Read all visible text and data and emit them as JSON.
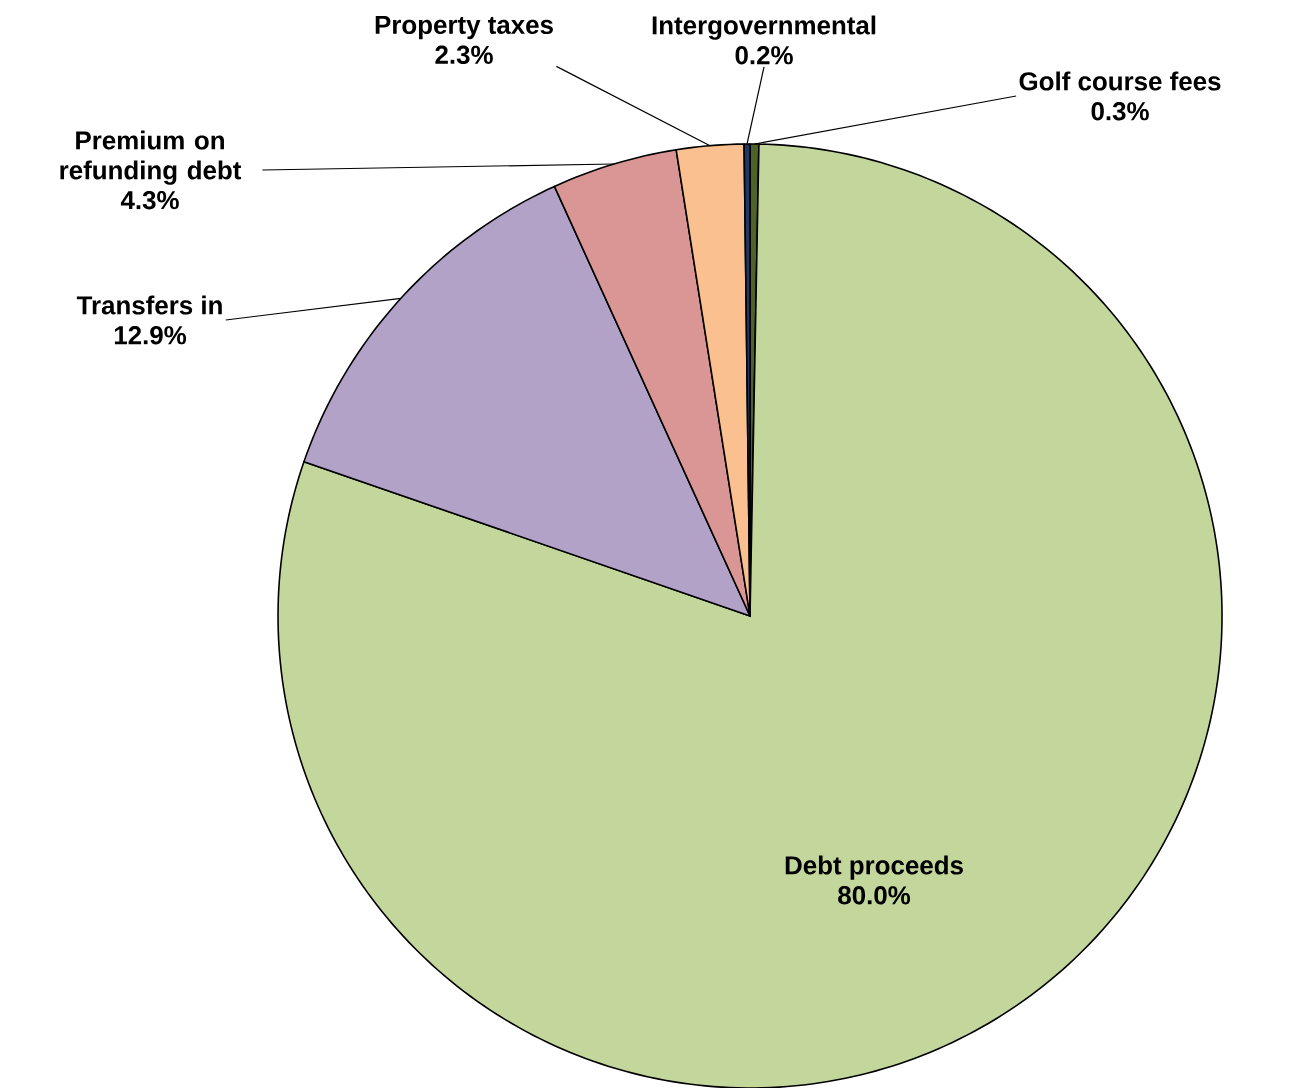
{
  "chart_data": {
    "type": "pie",
    "categories": [
      "Golf course fees",
      "Debt proceeds",
      "Transfers in",
      "Premium on refunding debt",
      "Property taxes",
      "Intergovernmental"
    ],
    "values": [
      0.3,
      80.0,
      12.9,
      4.3,
      2.3,
      0.2
    ],
    "value_labels": [
      "0.3%",
      "80.0%",
      "12.9%",
      "4.3%",
      "2.3%",
      "0.2%"
    ],
    "colors": [
      "#4f6228",
      "#c3d69b",
      "#b3a2c7",
      "#d99694",
      "#fac090",
      "#1f3864"
    ]
  }
}
